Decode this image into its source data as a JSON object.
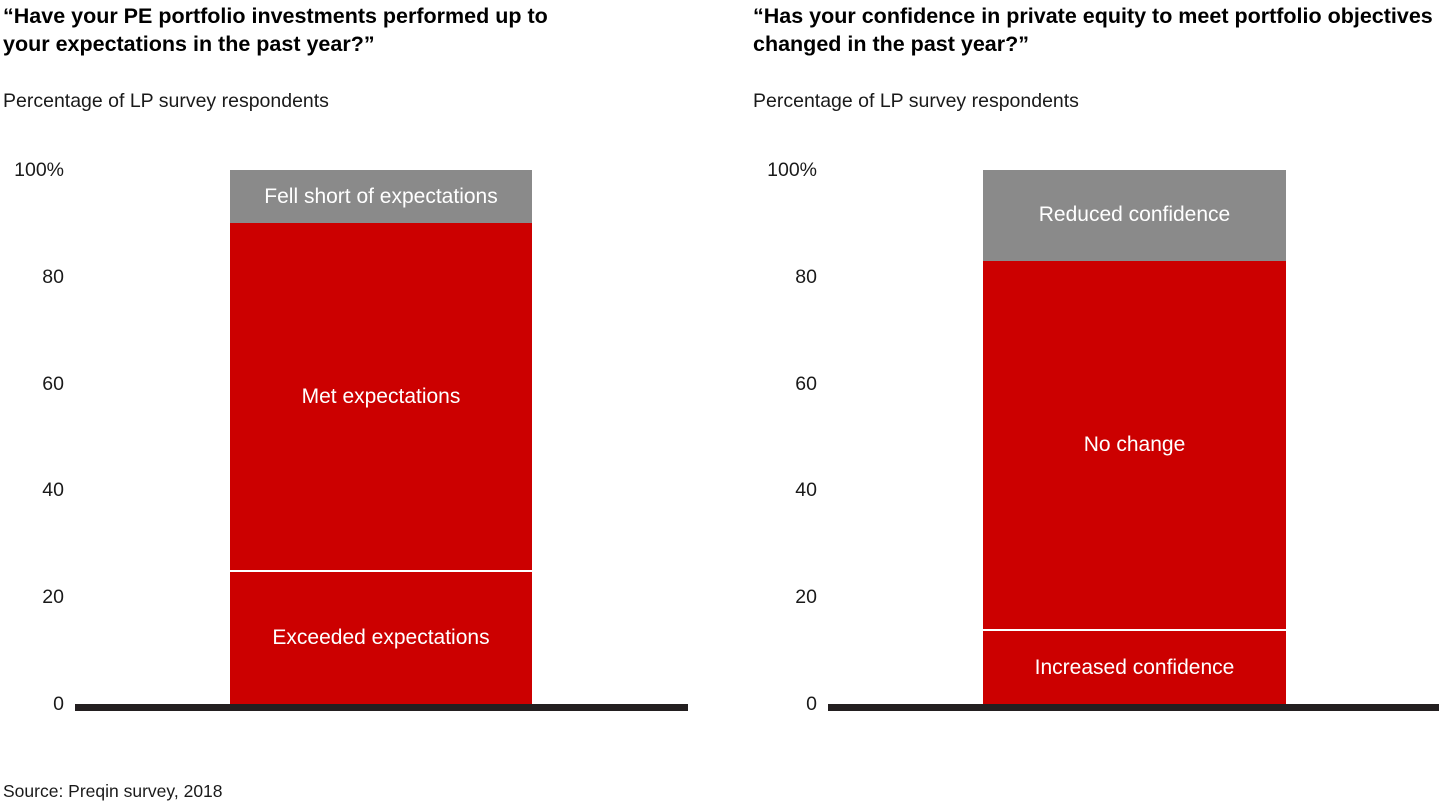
{
  "page": {
    "background": "#ffffff",
    "accent_red": "#cc0000",
    "accent_gray": "#8a8a8a",
    "axis_color": "#231f20"
  },
  "source": "Source: Preqin survey, 2018",
  "chart_data": [
    {
      "type": "bar",
      "stacked": true,
      "title": "“Have your PE portfolio investments performed up to your expectations in the past year?”",
      "subtitle": "Percentage of LP survey respondents",
      "xlabel": "",
      "ylabel": "Percentage of LP survey respondents",
      "ylim": [
        0,
        100
      ],
      "grid": false,
      "legend": "labels-inside-segments",
      "y_ticks": [
        {
          "value": 0,
          "label": "0"
        },
        {
          "value": 20,
          "label": "20"
        },
        {
          "value": 40,
          "label": "40"
        },
        {
          "value": 60,
          "label": "60"
        },
        {
          "value": 80,
          "label": "80"
        },
        {
          "value": 100,
          "label": "100%"
        }
      ],
      "bar": {
        "segments": [
          {
            "label": "Exceeded expectations",
            "value": 25,
            "color": "#cc0000",
            "text_color": "#ffffff",
            "divider_top": true
          },
          {
            "label": "Met expectations",
            "value": 65,
            "color": "#cc0000",
            "text_color": "#ffffff",
            "divider_top": false
          },
          {
            "label": "Fell short of expectations",
            "value": 10,
            "color": "#8a8a8a",
            "text_color": "#ffffff",
            "divider_top": false
          }
        ]
      }
    },
    {
      "type": "bar",
      "stacked": true,
      "title": "“Has your confidence in private equity to meet portfolio objectives changed in the past year?”",
      "subtitle": "Percentage of LP survey respondents",
      "xlabel": "",
      "ylabel": "Percentage of LP survey respondents",
      "ylim": [
        0,
        100
      ],
      "grid": false,
      "legend": "labels-inside-segments",
      "y_ticks": [
        {
          "value": 0,
          "label": "0"
        },
        {
          "value": 20,
          "label": "20"
        },
        {
          "value": 40,
          "label": "40"
        },
        {
          "value": 60,
          "label": "60"
        },
        {
          "value": 80,
          "label": "80"
        },
        {
          "value": 100,
          "label": "100%"
        }
      ],
      "bar": {
        "segments": [
          {
            "label": "Increased confidence",
            "value": 14,
            "color": "#cc0000",
            "text_color": "#ffffff",
            "divider_top": true
          },
          {
            "label": "No change",
            "value": 69,
            "color": "#cc0000",
            "text_color": "#ffffff",
            "divider_top": false
          },
          {
            "label": "Reduced confidence",
            "value": 17,
            "color": "#8a8a8a",
            "text_color": "#ffffff",
            "divider_top": false
          }
        ]
      }
    }
  ]
}
